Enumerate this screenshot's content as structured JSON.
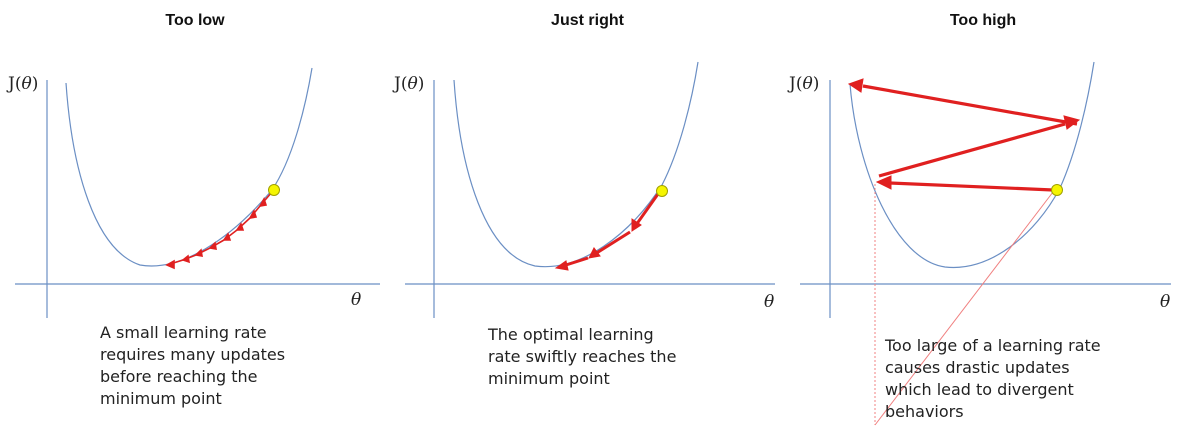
{
  "panels": [
    {
      "title": "Too low",
      "y_label_prefix": "J(",
      "y_label_var": "θ",
      "y_label_suffix": ")",
      "x_label": "θ",
      "caption": "A small learning rate\nrequires many updates\nbefore reaching the\nminimum point"
    },
    {
      "title": "Just right",
      "y_label_prefix": "J(",
      "y_label_var": "θ",
      "y_label_suffix": ")",
      "x_label": "θ",
      "caption": "The optimal learning\nrate swiftly reaches the\nminimum point"
    },
    {
      "title": "Too high",
      "y_label_prefix": "J(",
      "y_label_var": "θ",
      "y_label_suffix": ")",
      "x_label": "θ",
      "caption": "Too large of a learning rate\ncauses drastic updates\nwhich lead to divergent\nbehaviors"
    }
  ],
  "colors": {
    "axis": "#6b8fc4",
    "curve": "#6b8fc4",
    "arrow": "#e02020",
    "point_fill": "#f5f500",
    "point_stroke": "#a0a000",
    "guide": "#f08080"
  }
}
